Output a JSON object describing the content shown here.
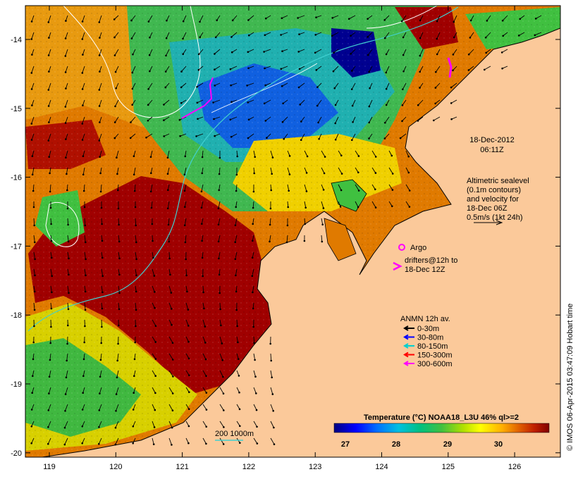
{
  "map": {
    "lon_ticks": [
      "119",
      "120",
      "121",
      "122",
      "123",
      "124",
      "125",
      "126"
    ],
    "lat_ticks": [
      "-14",
      "-15",
      "-16",
      "-17",
      "-18",
      "-19",
      "-20"
    ],
    "date_line1": "18-Dec-2012",
    "date_line2": "06:11Z",
    "altimetry_lines": [
      "Altimetric sealevel",
      "(0.1m contours)",
      "and velocity for",
      "18-Dec 06Z",
      "0.5m/s (1kt 24h)"
    ],
    "argo_label": "Argo",
    "drifters_line1": "drifters@12h to",
    "drifters_line2": "18-Dec 12Z",
    "anmn_title": "ANMN 12h av.",
    "anmn_legend": [
      {
        "label": "0-30m",
        "color": "#000000"
      },
      {
        "label": "30-80m",
        "color": "#0000ff"
      },
      {
        "label": "80-150m",
        "color": "#00d0d0"
      },
      {
        "label": "150-300m",
        "color": "#ff0000"
      },
      {
        "label": "300-600m",
        "color": "#ff00ff"
      }
    ],
    "depth_label": "200  1000m",
    "colorbar_title": "Temperature (°C) NOAA18_L3U 46% ql>=2",
    "colorbar_ticks": [
      "27",
      "28",
      "29",
      "30"
    ],
    "colorbar_colors": [
      "#000080",
      "#0000ff",
      "#0070ff",
      "#00c0e0",
      "#00c080",
      "#40c040",
      "#b0e000",
      "#ffff00",
      "#ffb000",
      "#e06000",
      "#c02000",
      "#800000"
    ],
    "credit": "© IMOS 06-Apr-2015 03:47:09 Hobart time",
    "land_color": "#fbc99a",
    "ocean_colors": {
      "dark_red": "#a00000",
      "orange": "#e07a00",
      "yellow_orange": "#f0b000",
      "yellow": "#f8e800",
      "green": "#40c040",
      "cyan": "#00c8c8",
      "blue": "#0040ff",
      "navy": "#000090"
    }
  }
}
